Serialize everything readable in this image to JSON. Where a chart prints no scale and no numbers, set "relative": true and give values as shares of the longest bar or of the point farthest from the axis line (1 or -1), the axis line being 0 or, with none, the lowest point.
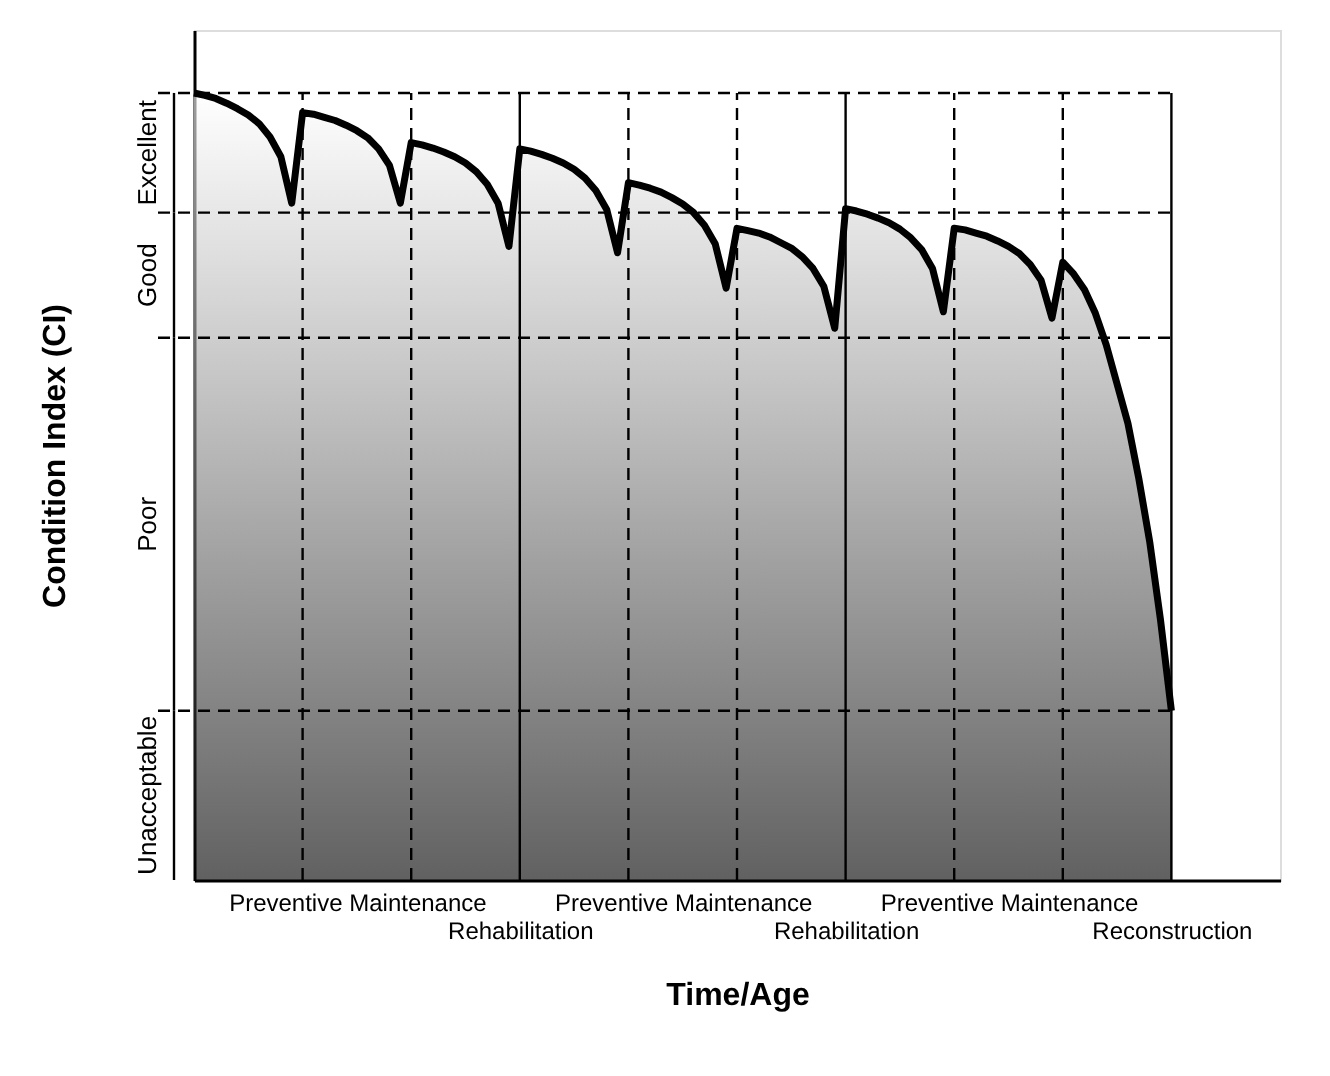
{
  "chart_data": {
    "type": "line",
    "relative": true,
    "xlabel": "Time/Age",
    "ylabel": "Condition Index (CI)",
    "tick_labels": "x",
    "categories": [
      null,
      null,
      null,
      null,
      null,
      null,
      null,
      null,
      null,
      null,
      null,
      null,
      null,
      null,
      null,
      "Preventive Maintenance",
      null,
      null,
      null,
      null,
      null,
      null,
      null,
      null,
      null,
      null,
      null,
      null,
      null,
      null,
      "Rehabilitation",
      null,
      null,
      null,
      null,
      null,
      null,
      null,
      null,
      null,
      null,
      null,
      null,
      null,
      null,
      "Preventive Maintenance",
      null,
      null,
      null,
      null,
      null,
      null,
      null,
      null,
      null,
      null,
      null,
      null,
      null,
      null,
      "Rehabilitation",
      null,
      null,
      null,
      null,
      null,
      null,
      null,
      null,
      null,
      null,
      null,
      null,
      null,
      null,
      "Preventive Maintenance",
      null,
      null,
      null,
      null,
      null,
      null,
      null,
      null,
      null,
      null,
      null,
      null,
      null,
      null,
      "Reconstruction"
    ],
    "series": [
      {
        "color": "#000000",
        "values": [
          1.0,
          0.997,
          0.993,
          0.987,
          0.98,
          0.972,
          0.961,
          0.944,
          0.919,
          0.86,
          0.975,
          0.973,
          0.969,
          0.965,
          0.959,
          0.952,
          0.943,
          0.929,
          0.908,
          0.86,
          0.937,
          0.934,
          0.93,
          0.925,
          0.919,
          0.911,
          0.9,
          0.884,
          0.86,
          0.805,
          0.929,
          0.926,
          0.922,
          0.917,
          0.911,
          0.903,
          0.892,
          0.876,
          0.852,
          0.797,
          0.886,
          0.883,
          0.879,
          0.874,
          0.867,
          0.859,
          0.848,
          0.832,
          0.808,
          0.752,
          0.828,
          0.825,
          0.822,
          0.817,
          0.81,
          0.803,
          0.792,
          0.777,
          0.754,
          0.701,
          0.853,
          0.85,
          0.846,
          0.841,
          0.835,
          0.827,
          0.816,
          0.801,
          0.777,
          0.722,
          0.828,
          0.826,
          0.822,
          0.818,
          0.812,
          0.805,
          0.796,
          0.782,
          0.762,
          0.714,
          0.785,
          0.77,
          0.75,
          0.72,
          0.68,
          0.63,
          0.58,
          0.51,
          0.43,
          0.33,
          0.215
        ]
      }
    ],
    "ref_lines": [
      {
        "axis": "y",
        "value": 0.215,
        "line_style": "dashed"
      },
      {
        "axis": "y",
        "value": 0.689,
        "line_style": "dashed"
      },
      {
        "axis": "y",
        "value": 0.848,
        "line_style": "dashed"
      }
    ],
    "annotations": [
      "Unacceptable",
      "Poor",
      "Good",
      "Excellent"
    ],
    "line_style": "solid",
    "grid": false
  }
}
